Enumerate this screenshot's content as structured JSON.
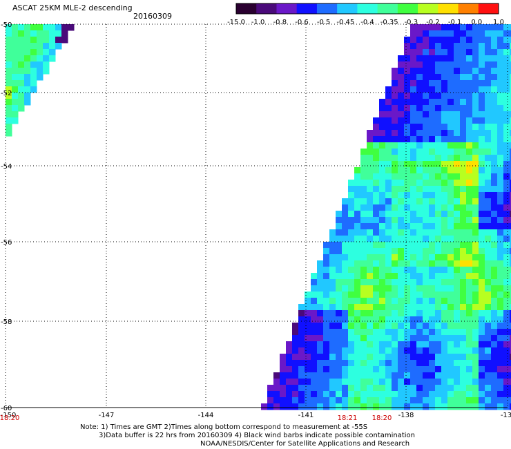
{
  "header": {
    "title": "ASCAT 25KM MLE-2 descending",
    "date": "20160309"
  },
  "colorbar": {
    "labels": [
      "-15.0",
      "-1.0",
      "-0.8",
      "-0.6",
      "-0.5",
      "-0.45",
      "-0.4",
      "-0.35",
      "-0.3",
      "-0.2",
      "-0.1",
      "0.0",
      "1.0"
    ],
    "colors": [
      "#2a0030",
      "#4a0a7a",
      "#6a18c8",
      "#1010ff",
      "#1e6cff",
      "#21c8ff",
      "#2dffe0",
      "#40ff9a",
      "#40ff40",
      "#b8ff20",
      "#ffe000",
      "#ff8000",
      "#ff1010"
    ]
  },
  "map": {
    "lat_labels": [
      "-50",
      "-52",
      "-54",
      "-56",
      "-58",
      "-60"
    ],
    "lon_labels": [
      "-150",
      "-147",
      "-144",
      "-141",
      "-138",
      "-13"
    ],
    "time_labels": [
      "18:20",
      "18:21",
      "18:20"
    ],
    "time_color": "#cc0000"
  },
  "notes": {
    "line1": "Note: 1) Times are GMT 2)Times along bottom correspond to measurement at -55S",
    "line2": "3)Data buffer is 22 hrs from 20160309 4) Black wind barbs indicate possible contamination",
    "line3": "NOAA/NESDIS/Center for Satellite Applications and Research"
  }
}
